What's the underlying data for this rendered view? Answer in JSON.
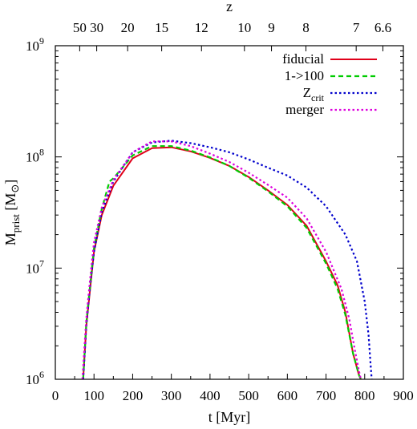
{
  "chart_data": {
    "type": "line",
    "xlabel": "t [Myr]",
    "ylabel_main": "M",
    "ylabel_sub": "prist",
    "ylabel_unit": "[M",
    "ylabel_unit_close": "]",
    "top_axis_label": "z",
    "xlim": [
      0,
      900
    ],
    "ylim": [
      1000000,
      1000000000
    ],
    "y_scale": "log",
    "x_ticks": [
      "0",
      "100",
      "200",
      "300",
      "400",
      "500",
      "600",
      "700",
      "800",
      "900"
    ],
    "x_tick_values": [
      0,
      100,
      200,
      300,
      400,
      500,
      600,
      700,
      800,
      900
    ],
    "y_ticks": [
      {
        "value": 1000000,
        "base": "10",
        "exp": "6"
      },
      {
        "value": 10000000,
        "base": "10",
        "exp": "7"
      },
      {
        "value": 100000000,
        "base": "10",
        "exp": "8"
      },
      {
        "value": 1000000000,
        "base": "10",
        "exp": "9"
      }
    ],
    "top_ticks": [
      {
        "label": "50",
        "t": 63
      },
      {
        "label": "30",
        "t": 107
      },
      {
        "label": "20",
        "t": 187
      },
      {
        "label": "15",
        "t": 275
      },
      {
        "label": "12",
        "t": 378
      },
      {
        "label": "10",
        "t": 489
      },
      {
        "label": "9",
        "t": 559
      },
      {
        "label": "8",
        "t": 648
      },
      {
        "label": "7",
        "t": 778
      },
      {
        "label": "6.6",
        "t": 847
      }
    ],
    "legend_position": "top-right",
    "series": [
      {
        "name": "fiducial",
        "name_sub": "",
        "color": "#e0001a",
        "dash": "solid",
        "x": [
          72,
          80,
          90,
          100,
          120,
          150,
          200,
          250,
          300,
          350,
          400,
          450,
          500,
          550,
          600,
          650,
          700,
          730,
          750,
          770,
          785,
          790
        ],
        "y": [
          1000000,
          3000000,
          6500000,
          14000000,
          30000000,
          55000000,
          97000000,
          120000000,
          122000000,
          112000000,
          98000000,
          83000000,
          66000000,
          50000000,
          37000000,
          24000000,
          11500000,
          7000000,
          4000000,
          1700000,
          1100000,
          1000000
        ]
      },
      {
        "name": "1->100",
        "name_sub": "",
        "color": "#00cc00",
        "dash": "dashed",
        "x": [
          72,
          80,
          90,
          100,
          120,
          140,
          150,
          200,
          250,
          300,
          350,
          400,
          450,
          500,
          550,
          600,
          650,
          700,
          730,
          750,
          770,
          785,
          790
        ],
        "y": [
          1000000,
          3200000,
          7000000,
          15000000,
          34000000,
          60000000,
          64000000,
          103000000,
          125000000,
          125000000,
          114000000,
          99000000,
          83000000,
          65000000,
          49000000,
          36000000,
          23000000,
          11000000,
          6500000,
          3800000,
          1700000,
          1100000,
          1000000
        ]
      },
      {
        "name": "Z",
        "name_sub": "crit",
        "color": "#0000cc",
        "dash": "dotted",
        "x": [
          72,
          80,
          90,
          100,
          120,
          150,
          200,
          250,
          300,
          350,
          400,
          450,
          500,
          550,
          600,
          650,
          700,
          750,
          780,
          800,
          810,
          815,
          818
        ],
        "y": [
          1000000,
          3000000,
          7000000,
          14000000,
          32000000,
          60000000,
          110000000,
          135000000,
          140000000,
          133000000,
          122000000,
          110000000,
          95000000,
          80000000,
          68000000,
          53000000,
          36000000,
          20000000,
          11500000,
          5000000,
          2500000,
          1400000,
          1000000
        ]
      },
      {
        "name": "merger",
        "name_sub": "",
        "color": "#dd00dd",
        "dash": "dotted",
        "x": [
          70,
          80,
          90,
          100,
          120,
          150,
          200,
          250,
          300,
          350,
          400,
          450,
          500,
          550,
          600,
          650,
          700,
          740,
          760,
          775,
          785,
          790
        ],
        "y": [
          1000000,
          3500000,
          8000000,
          17000000,
          35000000,
          62000000,
          110000000,
          138000000,
          138000000,
          125000000,
          107000000,
          90000000,
          72000000,
          56000000,
          43000000,
          28000000,
          14000000,
          6500000,
          3500000,
          1800000,
          1200000,
          1000000
        ]
      }
    ]
  }
}
